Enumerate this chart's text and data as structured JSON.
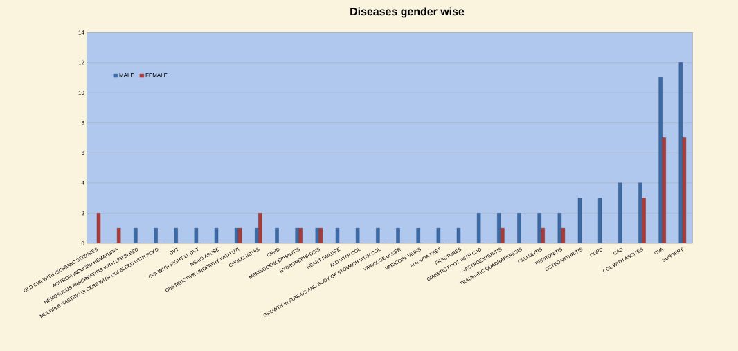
{
  "chart_data": {
    "type": "bar",
    "title": "Diseases gender wise",
    "categories": [
      "OLD CVA WITH ISCHEMIC SEIZURES",
      "ACITROM INDUCED HEMATURIA",
      "HEMOSUCUS PANCREATITIS WITH UGI BLEED",
      "MULTIPLE GASTRIC ULCERS WITH UGI BLEED WITH PCKD",
      "DVT",
      "CVA WITH RIGHT LL DVT",
      "NSAID ABUSE",
      "OBSTRUCTIVE UROPATHY WITH UTI",
      "CHOLELIATHIS",
      "CRHD",
      "MENINGOENCEPHALITIS",
      "HYDRONEPHROSIS",
      "HEART FAILURE",
      "ALD WITH COL",
      "GROWTH IN FUNDUS AND BODY OF STOMACH WITH COL",
      "VARICOSE ULCER",
      "VARICOSE VEINS",
      "MADURA FEET",
      "FRACTURES",
      "DIABETIC FOOT WITH CAD",
      "GASTROENTERITIS",
      "TRAUMATIC QUADRAPERESIS",
      "CELLULITIS",
      "PERITONITIS",
      "OSTEOARTHRITIS",
      "COPD",
      "CAD",
      "COL WITH ASCITES",
      "CVA",
      "SURGERY"
    ],
    "series": [
      {
        "name": "MALE",
        "color": "#3c6aa4",
        "values": [
          0,
          0,
          1,
          1,
          1,
          1,
          1,
          1,
          1,
          1,
          1,
          1,
          1,
          1,
          1,
          1,
          1,
          1,
          1,
          2,
          2,
          2,
          2,
          2,
          3,
          3,
          4,
          4,
          11,
          12
        ]
      },
      {
        "name": "FEMALE",
        "color": "#a83c3a",
        "values": [
          2,
          1,
          0,
          0,
          0,
          0,
          0,
          1,
          2,
          0,
          1,
          1,
          0,
          0,
          0,
          0,
          0,
          0,
          0,
          0,
          1,
          0,
          1,
          1,
          0,
          0,
          0,
          3,
          7,
          7
        ]
      }
    ],
    "ylim": [
      0,
      14
    ],
    "yticks": [
      0,
      2,
      4,
      6,
      8,
      10,
      12,
      14
    ],
    "grid": "y",
    "legend": "top left"
  }
}
